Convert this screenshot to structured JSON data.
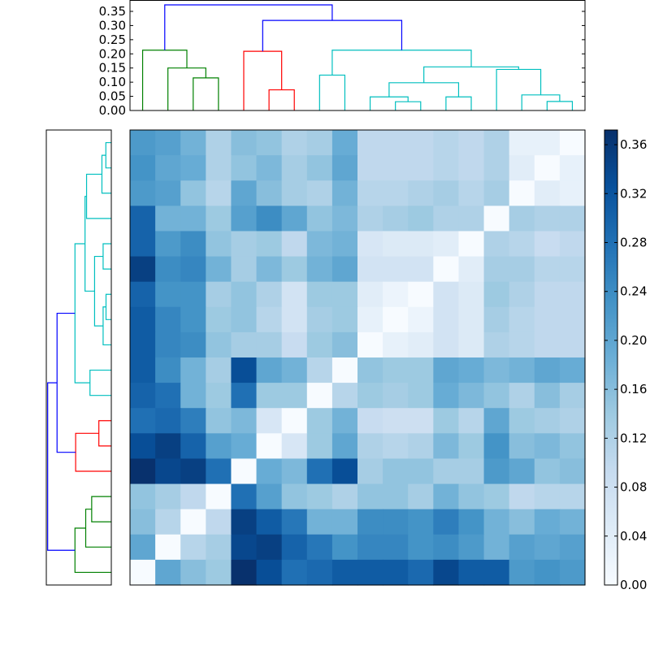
{
  "chart_data": {
    "type": "heatmap",
    "title": "",
    "description": "Clustered distance matrix heatmap with row and column dendrograms",
    "colormap": "Blues",
    "vmin": 0.0,
    "vmax": 0.372,
    "n": 18,
    "matrix": [
      [
        0.22,
        0.21,
        0.18,
        0.12,
        0.16,
        0.15,
        0.12,
        0.13,
        0.19,
        0.1,
        0.1,
        0.1,
        0.11,
        0.1,
        0.12,
        0.03,
        0.03,
        0.0
      ],
      [
        0.23,
        0.2,
        0.19,
        0.12,
        0.15,
        0.17,
        0.13,
        0.15,
        0.2,
        0.1,
        0.1,
        0.1,
        0.11,
        0.1,
        0.12,
        0.04,
        0.0,
        0.03
      ],
      [
        0.22,
        0.21,
        0.15,
        0.11,
        0.2,
        0.16,
        0.13,
        0.12,
        0.18,
        0.11,
        0.11,
        0.12,
        0.13,
        0.11,
        0.13,
        0.0,
        0.04,
        0.03
      ],
      [
        0.3,
        0.18,
        0.18,
        0.14,
        0.21,
        0.24,
        0.2,
        0.15,
        0.17,
        0.12,
        0.13,
        0.14,
        0.12,
        0.12,
        0.0,
        0.13,
        0.12,
        0.12
      ],
      [
        0.3,
        0.22,
        0.24,
        0.15,
        0.13,
        0.14,
        0.1,
        0.17,
        0.18,
        0.06,
        0.05,
        0.05,
        0.04,
        0.0,
        0.12,
        0.11,
        0.09,
        0.1
      ],
      [
        0.35,
        0.24,
        0.25,
        0.18,
        0.13,
        0.17,
        0.14,
        0.18,
        0.2,
        0.07,
        0.07,
        0.07,
        0.0,
        0.04,
        0.13,
        0.13,
        0.11,
        0.11
      ],
      [
        0.3,
        0.23,
        0.23,
        0.13,
        0.15,
        0.12,
        0.07,
        0.14,
        0.14,
        0.04,
        0.02,
        0.0,
        0.07,
        0.05,
        0.14,
        0.12,
        0.1,
        0.1
      ],
      [
        0.31,
        0.25,
        0.23,
        0.14,
        0.15,
        0.11,
        0.07,
        0.13,
        0.14,
        0.03,
        0.0,
        0.02,
        0.07,
        0.05,
        0.13,
        0.11,
        0.1,
        0.1
      ],
      [
        0.31,
        0.25,
        0.24,
        0.15,
        0.13,
        0.13,
        0.09,
        0.14,
        0.16,
        0.0,
        0.03,
        0.04,
        0.07,
        0.05,
        0.12,
        0.11,
        0.1,
        0.1
      ],
      [
        0.31,
        0.24,
        0.18,
        0.13,
        0.33,
        0.2,
        0.18,
        0.11,
        0.0,
        0.15,
        0.14,
        0.14,
        0.2,
        0.19,
        0.17,
        0.18,
        0.2,
        0.19
      ],
      [
        0.3,
        0.28,
        0.18,
        0.14,
        0.28,
        0.14,
        0.14,
        0.0,
        0.11,
        0.14,
        0.13,
        0.14,
        0.19,
        0.17,
        0.15,
        0.12,
        0.16,
        0.13
      ],
      [
        0.28,
        0.29,
        0.26,
        0.15,
        0.17,
        0.06,
        0.0,
        0.14,
        0.18,
        0.09,
        0.08,
        0.08,
        0.14,
        0.11,
        0.2,
        0.14,
        0.13,
        0.12
      ],
      [
        0.33,
        0.35,
        0.3,
        0.21,
        0.19,
        0.0,
        0.06,
        0.14,
        0.2,
        0.12,
        0.11,
        0.12,
        0.17,
        0.14,
        0.23,
        0.16,
        0.17,
        0.15
      ],
      [
        0.37,
        0.34,
        0.35,
        0.28,
        0.0,
        0.19,
        0.17,
        0.28,
        0.33,
        0.13,
        0.15,
        0.15,
        0.13,
        0.13,
        0.22,
        0.2,
        0.15,
        0.16
      ],
      [
        0.15,
        0.13,
        0.1,
        0.0,
        0.28,
        0.21,
        0.15,
        0.14,
        0.12,
        0.15,
        0.15,
        0.13,
        0.18,
        0.15,
        0.14,
        0.1,
        0.11,
        0.11
      ],
      [
        0.16,
        0.11,
        0.0,
        0.1,
        0.35,
        0.31,
        0.27,
        0.18,
        0.18,
        0.24,
        0.24,
        0.23,
        0.26,
        0.23,
        0.18,
        0.16,
        0.19,
        0.18
      ],
      [
        0.2,
        0.0,
        0.11,
        0.13,
        0.34,
        0.35,
        0.3,
        0.27,
        0.23,
        0.25,
        0.25,
        0.23,
        0.24,
        0.22,
        0.18,
        0.21,
        0.2,
        0.21
      ],
      [
        0.0,
        0.2,
        0.16,
        0.14,
        0.37,
        0.33,
        0.28,
        0.29,
        0.31,
        0.31,
        0.31,
        0.29,
        0.34,
        0.31,
        0.31,
        0.22,
        0.23,
        0.22
      ]
    ],
    "colorbar": {
      "ticks": [
        0.0,
        0.04,
        0.08,
        0.12,
        0.16,
        0.2,
        0.24,
        0.28,
        0.32,
        0.36
      ],
      "tick_labels": [
        "0.00",
        "0.04",
        "0.08",
        "0.12",
        "0.16",
        "0.20",
        "0.24",
        "0.28",
        "0.32",
        "0.36"
      ]
    },
    "top_dendrogram": {
      "ylabel": "",
      "ylim": [
        0.0,
        0.39
      ],
      "ticks": [
        0.0,
        0.05,
        0.1,
        0.15,
        0.2,
        0.25,
        0.3,
        0.35
      ],
      "tick_labels": [
        "0.00",
        "0.05",
        "0.10",
        "0.15",
        "0.20",
        "0.25",
        "0.30",
        "0.35"
      ],
      "links": [
        {
          "a": [
            2
          ],
          "b": [
            3
          ],
          "h": 0.115,
          "color": "#008000"
        },
        {
          "a": [
            1
          ],
          "b": [
            2,
            3
          ],
          "h": 0.15,
          "color": "#008000"
        },
        {
          "a": [
            0
          ],
          "b": [
            1,
            2,
            3
          ],
          "h": 0.213,
          "color": "#008000"
        },
        {
          "a": [
            5
          ],
          "b": [
            6
          ],
          "h": 0.073,
          "color": "#ff0000"
        },
        {
          "a": [
            4
          ],
          "b": [
            5,
            6
          ],
          "h": 0.209,
          "color": "#ff0000"
        },
        {
          "a": [
            7
          ],
          "b": [
            8
          ],
          "h": 0.125,
          "color": "#00bfbf"
        },
        {
          "a": [
            10
          ],
          "b": [
            11
          ],
          "h": 0.031,
          "color": "#00bfbf"
        },
        {
          "a": [
            9
          ],
          "b": [
            10,
            11
          ],
          "h": 0.048,
          "color": "#00bfbf"
        },
        {
          "a": [
            12
          ],
          "b": [
            13
          ],
          "h": 0.048,
          "color": "#00bfbf"
        },
        {
          "a": [
            9,
            10,
            11
          ],
          "b": [
            12,
            13
          ],
          "h": 0.098,
          "color": "#00bfbf"
        },
        {
          "a": [
            16
          ],
          "b": [
            17
          ],
          "h": 0.032,
          "color": "#00bfbf"
        },
        {
          "a": [
            15
          ],
          "b": [
            16,
            17
          ],
          "h": 0.055,
          "color": "#00bfbf"
        },
        {
          "a": [
            14
          ],
          "b": [
            15,
            16,
            17
          ],
          "h": 0.145,
          "color": "#00bfbf"
        },
        {
          "a": [
            9,
            10,
            11,
            12,
            13
          ],
          "b": [
            14,
            15,
            16,
            17
          ],
          "h": 0.154,
          "color": "#00bfbf"
        },
        {
          "a": [
            7,
            8
          ],
          "b": [
            9,
            10,
            11,
            12,
            13,
            14,
            15,
            16,
            17
          ],
          "h": 0.213,
          "color": "#00bfbf"
        },
        {
          "a": [
            4,
            5,
            6
          ],
          "b": [
            7,
            8,
            9,
            10,
            11,
            12,
            13,
            14,
            15,
            16,
            17
          ],
          "h": 0.318,
          "color": "#0000ff"
        },
        {
          "a": [
            0,
            1,
            2,
            3
          ],
          "b": [
            4,
            5,
            6,
            7,
            8,
            9,
            10,
            11,
            12,
            13,
            14,
            15,
            16,
            17
          ],
          "h": 0.373,
          "color": "#0000ff"
        }
      ]
    },
    "left_dendrogram": {
      "orientation": "left",
      "leaf_order": "reversed relative to top dendrogram (row 17 = column leaf 0)"
    }
  }
}
